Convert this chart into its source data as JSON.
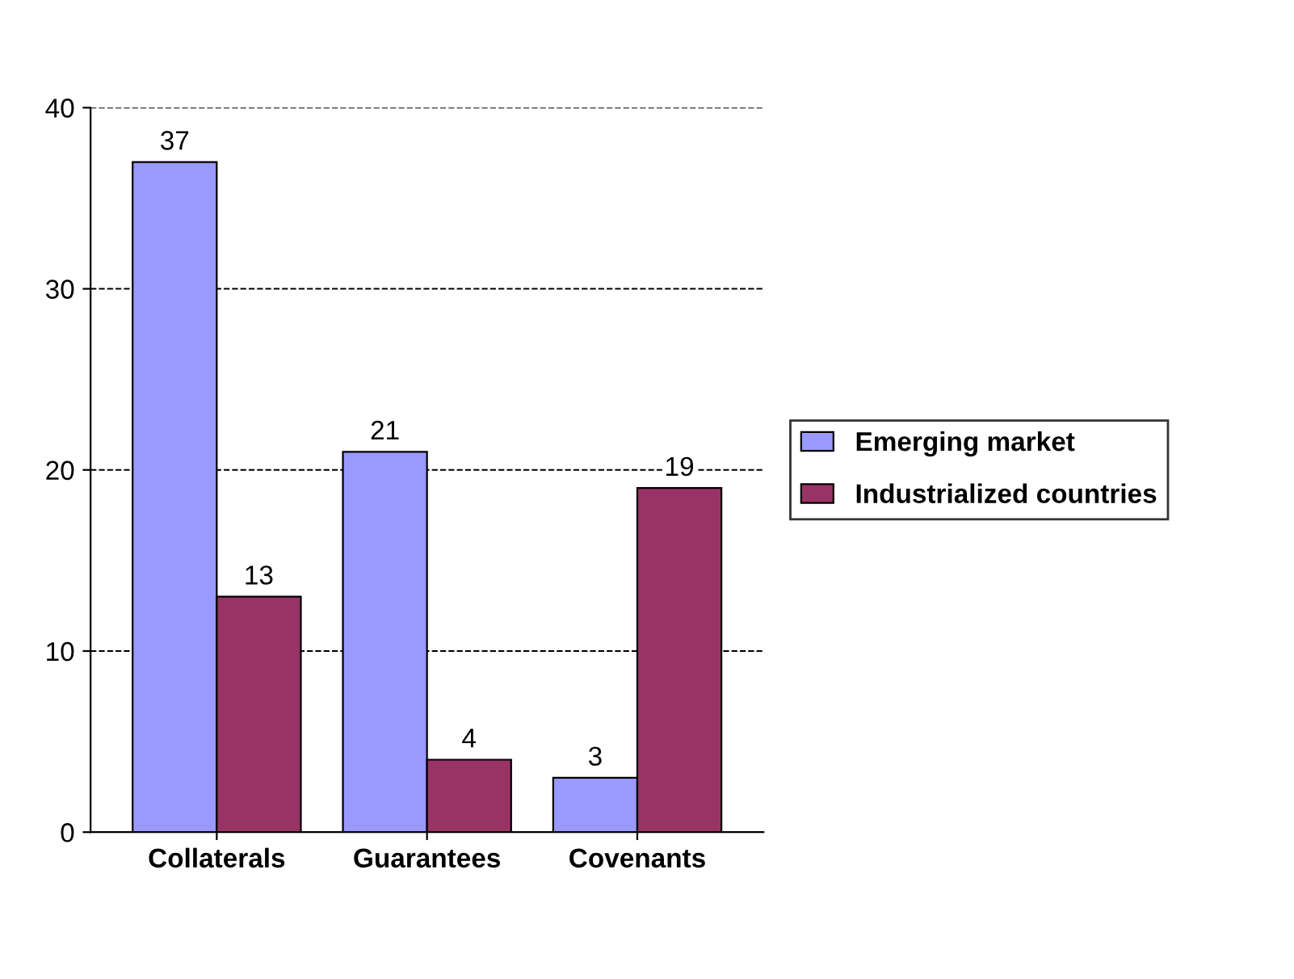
{
  "chart_data": {
    "type": "bar",
    "categories": [
      "Collaterals",
      "Guarantees",
      "Covenants"
    ],
    "series": [
      {
        "name": "Emerging market",
        "color": "#9999ff",
        "values": [
          37,
          21,
          3
        ]
      },
      {
        "name": "Industrialized countries",
        "color": "#993366",
        "values": [
          13,
          4,
          19
        ]
      }
    ],
    "ylim": [
      0,
      40
    ],
    "yticks": [
      0,
      10,
      20,
      30,
      40
    ],
    "grid": "y",
    "legend": "right",
    "data_labels": true
  }
}
